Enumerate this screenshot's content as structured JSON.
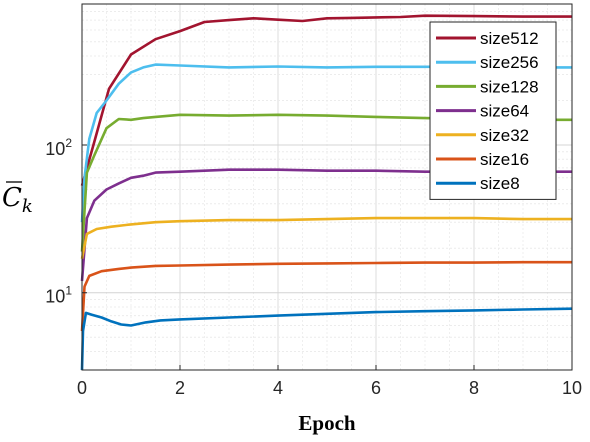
{
  "chart_data": {
    "type": "line",
    "title": "",
    "xlabel": "Epoch",
    "ylabel_base": "C",
    "ylabel_sub": "k",
    "xlim": [
      0,
      10
    ],
    "ylim": [
      3,
      900
    ],
    "yscale": "log",
    "grid": true,
    "legend_position": "top-right",
    "x_ticks": [
      0,
      2,
      4,
      6,
      8,
      10
    ],
    "y_ticks": [
      {
        "value": 10,
        "base": "10",
        "exp": "1"
      },
      {
        "value": 100,
        "base": "10",
        "exp": "2"
      }
    ],
    "series": [
      {
        "name": "size512",
        "color": "#A2142F",
        "x": [
          0,
          0.25,
          0.55,
          1.0,
          1.5,
          2.0,
          2.5,
          3.0,
          3.5,
          4.0,
          4.5,
          5.0,
          5.5,
          6.0,
          6.5,
          7.0,
          8.0,
          9.0,
          10.0
        ],
        "y": [
          53,
          105,
          240,
          410,
          520,
          590,
          680,
          700,
          720,
          705,
          690,
          720,
          725,
          730,
          735,
          750,
          745,
          740,
          740
        ]
      },
      {
        "name": "size256",
        "color": "#4DBEEE",
        "x": [
          0,
          0.05,
          0.15,
          0.3,
          0.5,
          0.75,
          1.0,
          1.25,
          1.5,
          2.0,
          3.0,
          4.0,
          5.0,
          6.0,
          7.0,
          8.0,
          9.0,
          10.0
        ],
        "y": [
          30,
          60,
          110,
          165,
          200,
          260,
          310,
          335,
          350,
          345,
          335,
          340,
          335,
          338,
          338,
          340,
          335,
          335
        ]
      },
      {
        "name": "size128",
        "color": "#77AC30",
        "x": [
          0,
          0.1,
          0.25,
          0.5,
          0.75,
          1.0,
          1.25,
          1.5,
          2.0,
          3.0,
          4.0,
          5.0,
          6.0,
          7.0,
          8.0,
          9.0,
          10.0
        ],
        "y": [
          19,
          65,
          85,
          130,
          150,
          148,
          152,
          155,
          160,
          158,
          160,
          158,
          155,
          152,
          150,
          148,
          148
        ]
      },
      {
        "name": "size64",
        "color": "#7E2F8E",
        "x": [
          0,
          0.1,
          0.25,
          0.5,
          0.75,
          1.0,
          1.25,
          1.5,
          2.0,
          3.0,
          4.0,
          5.0,
          6.0,
          7.0,
          8.0,
          9.0,
          10.0
        ],
        "y": [
          12,
          32,
          42,
          50,
          55,
          60,
          62,
          65,
          66,
          68,
          68,
          67,
          67,
          66,
          66,
          66,
          66
        ]
      },
      {
        "name": "size32",
        "color": "#EDB120",
        "x": [
          0,
          0.1,
          0.3,
          0.6,
          1.0,
          1.5,
          2.0,
          3.0,
          4.0,
          5.0,
          6.0,
          7.0,
          8.0,
          9.0,
          10.0
        ],
        "y": [
          17,
          25,
          27,
          28,
          29,
          30,
          30.5,
          31,
          31,
          31.5,
          32,
          32,
          32,
          31.5,
          31.5
        ]
      },
      {
        "name": "size16",
        "color": "#D95319",
        "x": [
          0,
          0.05,
          0.15,
          0.4,
          0.75,
          1.0,
          1.5,
          2.0,
          3.0,
          4.0,
          5.0,
          6.0,
          7.0,
          8.0,
          9.0,
          10.0
        ],
        "y": [
          5.5,
          11,
          13,
          14,
          14.5,
          14.8,
          15.2,
          15.3,
          15.5,
          15.7,
          15.8,
          15.9,
          16,
          16,
          16.1,
          16.1
        ]
      },
      {
        "name": "size8",
        "color": "#0072BD",
        "x": [
          0,
          0.02,
          0.08,
          0.2,
          0.4,
          0.6,
          0.8,
          1.0,
          1.3,
          1.6,
          2.0,
          3.0,
          4.0,
          5.0,
          6.0,
          7.0,
          8.0,
          9.0,
          10.0
        ],
        "y": [
          3,
          5.5,
          7.3,
          7.1,
          6.8,
          6.4,
          6.1,
          6.0,
          6.3,
          6.5,
          6.6,
          6.8,
          7.0,
          7.2,
          7.4,
          7.5,
          7.6,
          7.7,
          7.8
        ]
      }
    ]
  }
}
